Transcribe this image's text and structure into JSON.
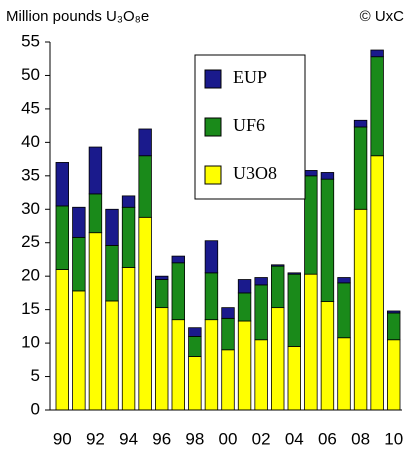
{
  "chart_data": {
    "type": "stacked_bar",
    "subtitle": "Million pounds U₃O₈e",
    "annotation": "© UxC",
    "categories": [
      "90",
      null,
      "92",
      null,
      "94",
      null,
      "96",
      null,
      "98",
      null,
      "00",
      null,
      "02",
      null,
      "04",
      null,
      "06",
      null,
      "08",
      null,
      "10"
    ],
    "series": [
      {
        "name": "U3O8",
        "color": "#ffff00",
        "values": [
          21,
          17.8,
          26.5,
          16.3,
          21.3,
          28.8,
          15.3,
          13.5,
          8,
          13.5,
          9,
          13.3,
          10.5,
          15.3,
          9.5,
          20.3,
          16.2,
          10.8,
          30,
          38,
          10.5
        ]
      },
      {
        "name": "UF6",
        "color": "#1a8a1a",
        "values": [
          9.5,
          8,
          5.8,
          8.3,
          9,
          9.2,
          4.2,
          8.5,
          3,
          7,
          4.7,
          4.2,
          8.2,
          6.2,
          10.8,
          14.7,
          18.3,
          8.2,
          12.3,
          14.8,
          4
        ]
      },
      {
        "name": "EUP",
        "color": "#1a1a8c",
        "values": [
          6.5,
          4.5,
          7,
          5.4,
          1.7,
          4,
          0.5,
          1,
          1.3,
          4.8,
          1.6,
          2,
          1.1,
          0.2,
          0.2,
          0.8,
          1,
          0.8,
          1,
          1,
          0.3
        ]
      }
    ],
    "ylim": [
      0,
      55
    ],
    "yticks": [
      0,
      5,
      10,
      15,
      20,
      25,
      30,
      35,
      40,
      45,
      50,
      55
    ],
    "grid": false
  }
}
